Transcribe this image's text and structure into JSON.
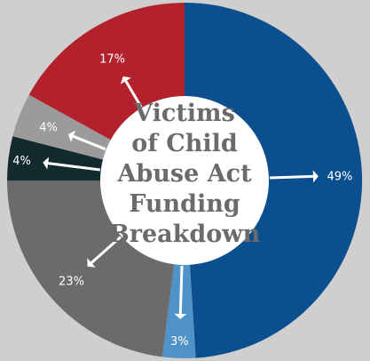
{
  "chart_data": {
    "type": "pie",
    "title_lines": [
      "Victims",
      "of Child",
      "Abuse Act",
      "Funding",
      "Breakdown"
    ],
    "slices": [
      {
        "label": "49%",
        "value": 49,
        "color": "#0b4f8f"
      },
      {
        "label": "3%",
        "value": 3,
        "color": "#4f93c9"
      },
      {
        "label": "23%",
        "value": 23,
        "color": "#6b6b6b"
      },
      {
        "label": "4%",
        "value": 4,
        "color": "#142b2e"
      },
      {
        "label": "4%",
        "value": 4,
        "color": "#9c9a9b"
      },
      {
        "label": "17%",
        "value": 17,
        "color": "#b3222c"
      }
    ],
    "center_color": "#ffffff",
    "arrow_color": "#ffffff",
    "background_color": "#cfcfcf"
  }
}
